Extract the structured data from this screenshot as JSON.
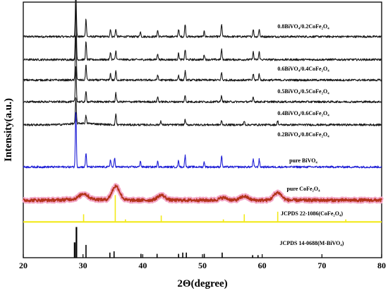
{
  "chart_data": {
    "type": "line",
    "xlabel": "2Θ(degree)",
    "ylabel": "Intensity(a.u.)",
    "xlim": [
      20,
      80
    ],
    "x_ticks": [
      "20",
      "30",
      "40",
      "50",
      "60",
      "70",
      "80"
    ],
    "grid": false,
    "legend": "none",
    "series": [
      {
        "name": "0.8BiVO₄/0.2CoFe₂O₄",
        "color": "#1a1a1a",
        "baseline": 0.865,
        "peaks": [
          [
            28.8,
            0.19
          ],
          [
            30.5,
            0.07
          ],
          [
            34.6,
            0.03
          ],
          [
            35.5,
            0.03
          ],
          [
            39.6,
            0.02
          ],
          [
            42.5,
            0.025
          ],
          [
            46.0,
            0.03
          ],
          [
            47.1,
            0.05
          ],
          [
            50.3,
            0.02
          ],
          [
            53.2,
            0.05
          ],
          [
            58.5,
            0.03
          ],
          [
            59.5,
            0.03
          ]
        ]
      },
      {
        "name": "0.6BiVO₄/0.4CoFe₂O₄",
        "color": "#1a1a1a",
        "baseline": 0.775,
        "peaks": [
          [
            28.8,
            0.22
          ],
          [
            30.5,
            0.07
          ],
          [
            34.6,
            0.03
          ],
          [
            35.5,
            0.035
          ],
          [
            42.5,
            0.025
          ],
          [
            46.0,
            0.025
          ],
          [
            47.1,
            0.04
          ],
          [
            50.3,
            0.02
          ],
          [
            53.2,
            0.04
          ],
          [
            58.5,
            0.03
          ],
          [
            59.5,
            0.03
          ]
        ]
      },
      {
        "name": "0.5BiVO₄/0.5CoFe₂O₄",
        "color": "#1a1a1a",
        "baseline": 0.695,
        "peaks": [
          [
            28.8,
            0.18
          ],
          [
            30.5,
            0.06
          ],
          [
            34.6,
            0.025
          ],
          [
            35.5,
            0.035
          ],
          [
            42.5,
            0.02
          ],
          [
            46.0,
            0.02
          ],
          [
            47.1,
            0.035
          ],
          [
            53.2,
            0.03
          ],
          [
            58.5,
            0.025
          ],
          [
            59.5,
            0.025
          ]
        ]
      },
      {
        "name": "0.4BiVO₄/0.6CoFe₂O₄",
        "color": "#1a1a1a",
        "baseline": 0.61,
        "peaks": [
          [
            28.8,
            0.14
          ],
          [
            30.5,
            0.04
          ],
          [
            35.5,
            0.035
          ],
          [
            42.5,
            0.02
          ],
          [
            47.1,
            0.025
          ],
          [
            53.2,
            0.025
          ],
          [
            58.5,
            0.02
          ]
        ]
      },
      {
        "name": "0.2BiVO₄/0.8CoFe₂O₄",
        "color": "#1a1a1a",
        "baseline": 0.52,
        "peaks": [
          [
            28.8,
            0.1
          ],
          [
            30.5,
            0.03
          ],
          [
            35.5,
            0.045
          ],
          [
            43.0,
            0.015
          ],
          [
            47.1,
            0.02
          ],
          [
            53.2,
            0.015
          ],
          [
            57.0,
            0.015
          ],
          [
            62.6,
            0.015
          ]
        ]
      },
      {
        "name": "pure BiVO₄",
        "color": "#1f1fd6",
        "baseline": 0.355,
        "peaks": [
          [
            28.8,
            0.22
          ],
          [
            30.5,
            0.055
          ],
          [
            34.6,
            0.03
          ],
          [
            35.3,
            0.035
          ],
          [
            39.6,
            0.025
          ],
          [
            42.5,
            0.025
          ],
          [
            46.0,
            0.025
          ],
          [
            47.1,
            0.045
          ],
          [
            50.3,
            0.02
          ],
          [
            53.2,
            0.045
          ],
          [
            58.5,
            0.03
          ],
          [
            59.5,
            0.03
          ]
        ]
      },
      {
        "name": "pure CoFe₂O₄",
        "color": "#b3341a",
        "baseline": 0.225,
        "peaks": [
          [
            30.1,
            0.02
          ],
          [
            35.5,
            0.055
          ],
          [
            43.1,
            0.02
          ],
          [
            53.5,
            0.01
          ],
          [
            57.0,
            0.015
          ],
          [
            62.6,
            0.03
          ]
        ]
      }
    ],
    "reference_patterns": [
      {
        "name": "JCPDS 22-1086(CoFe₂O₄)",
        "color": "#f2ea1a",
        "baseline": 0.14,
        "lines": [
          [
            30.1,
            0.03
          ],
          [
            35.4,
            0.105
          ],
          [
            37.1,
            0.01
          ],
          [
            43.1,
            0.025
          ],
          [
            53.5,
            0.01
          ],
          [
            57.0,
            0.03
          ],
          [
            62.6,
            0.04
          ],
          [
            74.0,
            0.01
          ]
        ]
      },
      {
        "name": "JCPDS 14-0688(M-BiVO₄)",
        "color": "#000000",
        "baseline": 0.0,
        "lines": [
          [
            28.6,
            0.06
          ],
          [
            28.9,
            0.12
          ],
          [
            30.5,
            0.05
          ],
          [
            34.5,
            0.02
          ],
          [
            35.2,
            0.025
          ],
          [
            39.7,
            0.015
          ],
          [
            42.4,
            0.015
          ],
          [
            46.0,
            0.015
          ],
          [
            46.7,
            0.02
          ],
          [
            47.3,
            0.02
          ],
          [
            50.3,
            0.015
          ],
          [
            53.3,
            0.02
          ],
          [
            58.4,
            0.01
          ],
          [
            59.3,
            0.01
          ]
        ]
      }
    ]
  }
}
